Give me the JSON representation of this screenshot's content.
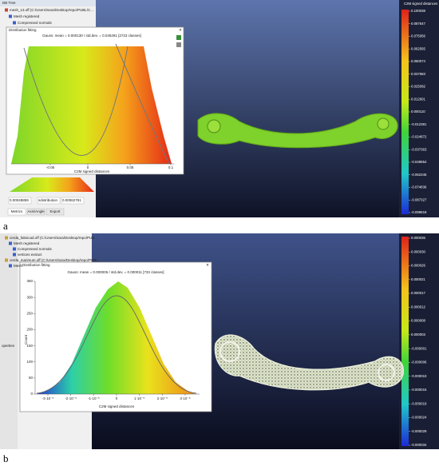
{
  "panel_a": {
    "label": "a",
    "tree_header": "DB Tree",
    "tree": [
      "mesh_13.off (C:/Users/Sara/Desktop/repo/PUBL/C...",
      "Mesh registered",
      "Compressed normals"
    ],
    "dialog": {
      "title": "Distribution fitting",
      "plot_title": "Gauss: mean = 0.000130 / std.dev. = 0.045291 [2723 classes]",
      "x_label": "C2M signed distances",
      "x_ticks": [
        "-0.05",
        "0",
        "0.05",
        "0.1"
      ]
    },
    "fields": [
      "0.00049859",
      "sdistribution",
      "0.00062791"
    ],
    "tabs": [
      "Metrics",
      "Axis/Angle",
      "Export"
    ],
    "scale": {
      "title": "C2M signed distances",
      "ticks": [
        "0.100038",
        "0.087547",
        "0.075056",
        "0.062565",
        "0.050074",
        "0.037583",
        "0.025092",
        "0.012601",
        "0.000110",
        "-0.012381",
        "-0.024872",
        "-0.037363",
        "-0.049854",
        "-0.062345",
        "-0.074836",
        "-0.087327",
        "-0.099818"
      ]
    }
  },
  "panel_b": {
    "label": "b",
    "tree": [
      "cerda_fabsicad.off (C:/Users/Sara/Desktop/repo/PUB...",
      "Mesh registered",
      "Compressed normals",
      "vertices extract",
      "cerda_marimum.off (C:/Users/Sara/Desktop/repo/PUBL...",
      "Mesh"
    ],
    "side_tab": "operties",
    "dialog": {
      "title": "Distribution fitting",
      "plot_title": "Gauss: mean = 0.000005 / std.dev. = 0.000011 [733 classes]",
      "y_label": "Count",
      "y_ticks": [
        "350",
        "300",
        "250",
        "200",
        "150",
        "100",
        "50",
        "0"
      ],
      "x_label": "C2M signed distances",
      "x_ticks": [
        "-3·10⁻⁵",
        "-2·10⁻⁵",
        "-1·10⁻⁵",
        "0",
        "1·10⁻⁵",
        "2·10⁻⁵",
        "3·10⁻⁵"
      ]
    },
    "scale": {
      "title": "",
      "ticks": [
        "0.000035",
        "0.000030",
        "0.000026",
        "0.000021",
        "0.000017",
        "0.000012",
        "0.000008",
        "0.000003",
        "-0.000001",
        "-0.000006",
        "-0.000010",
        "-0.000015",
        "-0.000019",
        "-0.000024",
        "-0.000029",
        "-0.000034"
      ]
    }
  }
}
